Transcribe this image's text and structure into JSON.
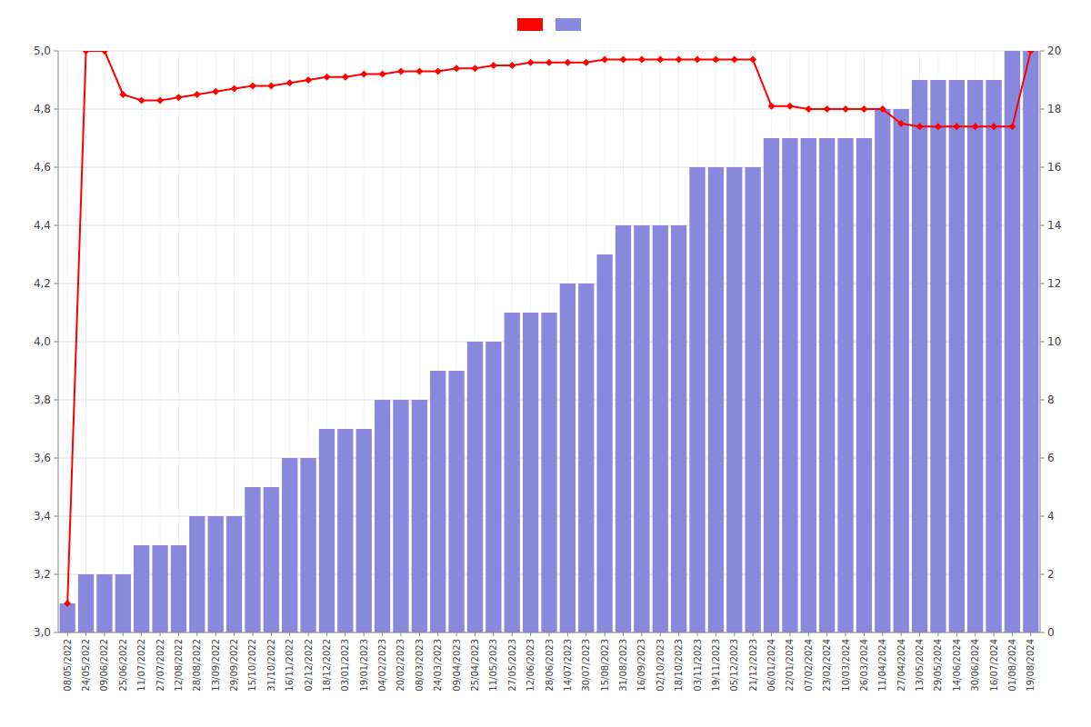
{
  "chart_data": {
    "type": "bar",
    "categories": [
      "08/05/2022",
      "24/05/2022",
      "09/06/2022",
      "25/06/2022",
      "11/07/2022",
      "27/07/2022",
      "12/08/2022",
      "28/08/2022",
      "13/09/2022",
      "29/09/2022",
      "15/10/2022",
      "31/10/2022",
      "16/11/2022",
      "02/12/2022",
      "18/12/2022",
      "03/01/2023",
      "19/01/2023",
      "04/02/2023",
      "20/02/2023",
      "08/03/2023",
      "24/03/2023",
      "09/04/2023",
      "25/04/2023",
      "11/05/2023",
      "27/05/2023",
      "12/06/2023",
      "28/06/2023",
      "14/07/2023",
      "30/07/2023",
      "15/08/2023",
      "31/08/2023",
      "16/09/2023",
      "02/10/2023",
      "18/10/2023",
      "03/11/2023",
      "19/11/2023",
      "05/12/2023",
      "21/12/2023",
      "06/01/2024",
      "22/01/2024",
      "07/02/2024",
      "23/02/2024",
      "10/03/2024",
      "26/03/2024",
      "11/04/2024",
      "27/04/2024",
      "13/05/2024",
      "29/05/2024",
      "14/06/2024",
      "30/06/2024",
      "16/07/2024",
      "01/08/2024",
      "19/08/2024"
    ],
    "series": [
      {
        "type": "bar",
        "axis": "y2",
        "color": "#8888DD",
        "values": [
          1,
          2,
          2,
          2,
          3,
          3,
          3,
          4,
          4,
          4,
          5,
          5,
          6,
          6,
          7,
          7,
          7,
          8,
          8,
          8,
          9,
          9,
          10,
          10,
          11,
          11,
          11,
          12,
          12,
          13,
          14,
          14,
          14,
          14,
          16,
          16,
          16,
          16,
          17,
          17,
          17,
          17,
          17,
          17,
          18,
          18,
          19,
          19,
          19,
          19,
          19,
          20,
          20
        ]
      },
      {
        "type": "line",
        "color": "#FF0000",
        "marker": "diamond",
        "values": [
          3.1,
          5.0,
          5.0,
          4.85,
          4.83,
          4.83,
          4.84,
          4.85,
          4.86,
          4.87,
          4.88,
          4.88,
          4.89,
          4.9,
          4.91,
          4.91,
          4.92,
          4.92,
          4.93,
          4.93,
          4.93,
          4.94,
          4.94,
          4.95,
          4.95,
          4.96,
          4.96,
          4.96,
          4.96,
          4.97,
          4.97,
          4.97,
          4.97,
          4.97,
          4.97,
          4.97,
          4.97,
          4.97,
          4.81,
          4.81,
          4.8,
          4.8,
          4.8,
          4.8,
          4.8,
          4.75,
          4.74,
          4.74,
          4.74,
          4.74,
          4.74,
          4.74,
          5.0
        ]
      }
    ],
    "ylim": [
      3.0,
      5.0
    ],
    "yticks": [
      {
        "value": 3.0,
        "label": "3,0"
      },
      {
        "value": 3.2,
        "label": "3,2"
      },
      {
        "value": 3.4,
        "label": "3,4"
      },
      {
        "value": 3.6,
        "label": "3,6"
      },
      {
        "value": 3.8,
        "label": "3,8"
      },
      {
        "value": 4.0,
        "label": "4,0"
      },
      {
        "value": 4.2,
        "label": "4,2"
      },
      {
        "value": 4.4,
        "label": "4,4"
      },
      {
        "value": 4.6,
        "label": "4,6"
      },
      {
        "value": 4.8,
        "label": "4,8"
      },
      {
        "value": 5.0,
        "label": "5,0"
      }
    ],
    "y2lim": [
      0,
      20
    ],
    "y2ticks": [
      0,
      2,
      4,
      6,
      8,
      10,
      12,
      14,
      16,
      18,
      20
    ],
    "grid": true,
    "legend": "top"
  }
}
